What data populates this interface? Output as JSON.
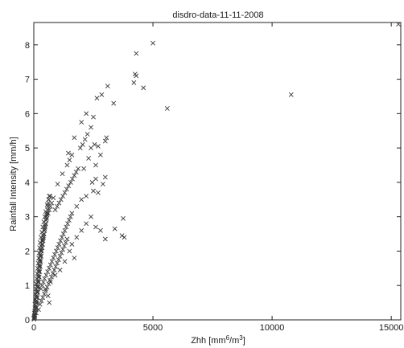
{
  "chart_data": {
    "type": "scatter",
    "title": "disdro-data-11-11-2008",
    "xlabel": {
      "base": "Zhh [mm",
      "sup1": "6",
      "mid": "/m",
      "sup2": "3",
      "end": "]"
    },
    "ylabel": "Rainfall Intensity [mm/h]",
    "xlim": [
      0,
      15400
    ],
    "ylim": [
      0,
      8.65
    ],
    "xticks": [
      0,
      5000,
      10000,
      15000
    ],
    "yticks": [
      0,
      1,
      2,
      3,
      4,
      5,
      6,
      7,
      8
    ],
    "grid": false,
    "marker": "x",
    "marker_color": "#3a3a3a",
    "points": [
      [
        15,
        0.05
      ],
      [
        25,
        0.08
      ],
      [
        30,
        0.12
      ],
      [
        40,
        0.1
      ],
      [
        50,
        0.15
      ],
      [
        20,
        0.2
      ],
      [
        35,
        0.25
      ],
      [
        55,
        0.3
      ],
      [
        60,
        0.22
      ],
      [
        70,
        0.35
      ],
      [
        80,
        0.4
      ],
      [
        45,
        0.45
      ],
      [
        90,
        0.5
      ],
      [
        100,
        0.55
      ],
      [
        65,
        0.6
      ],
      [
        110,
        0.65
      ],
      [
        120,
        0.7
      ],
      [
        75,
        0.75
      ],
      [
        130,
        0.8
      ],
      [
        140,
        0.85
      ],
      [
        95,
        0.9
      ],
      [
        150,
        0.95
      ],
      [
        160,
        1.0
      ],
      [
        105,
        1.05
      ],
      [
        170,
        1.1
      ],
      [
        180,
        1.15
      ],
      [
        125,
        1.2
      ],
      [
        190,
        1.25
      ],
      [
        200,
        1.3
      ],
      [
        145,
        1.35
      ],
      [
        210,
        1.4
      ],
      [
        220,
        1.45
      ],
      [
        165,
        1.5
      ],
      [
        230,
        1.55
      ],
      [
        240,
        1.6
      ],
      [
        185,
        1.65
      ],
      [
        250,
        1.7
      ],
      [
        260,
        1.75
      ],
      [
        205,
        1.8
      ],
      [
        270,
        1.85
      ],
      [
        280,
        1.9
      ],
      [
        225,
        1.95
      ],
      [
        290,
        2.0
      ],
      [
        300,
        2.05
      ],
      [
        245,
        2.1
      ],
      [
        320,
        2.15
      ],
      [
        340,
        2.2
      ],
      [
        265,
        2.25
      ],
      [
        360,
        2.3
      ],
      [
        380,
        2.35
      ],
      [
        300,
        2.4
      ],
      [
        400,
        2.45
      ],
      [
        420,
        2.5
      ],
      [
        340,
        2.55
      ],
      [
        440,
        2.6
      ],
      [
        460,
        2.65
      ],
      [
        380,
        2.7
      ],
      [
        480,
        2.75
      ],
      [
        500,
        2.8
      ],
      [
        420,
        2.85
      ],
      [
        520,
        2.9
      ],
      [
        540,
        2.95
      ],
      [
        460,
        3.0
      ],
      [
        560,
        3.05
      ],
      [
        600,
        3.1
      ],
      [
        500,
        3.15
      ],
      [
        650,
        3.2
      ],
      [
        700,
        3.3
      ],
      [
        560,
        3.35
      ],
      [
        750,
        3.4
      ],
      [
        620,
        3.5
      ],
      [
        820,
        3.55
      ],
      [
        680,
        3.6
      ],
      [
        200,
        0.3
      ],
      [
        260,
        0.45
      ],
      [
        320,
        0.55
      ],
      [
        380,
        0.65
      ],
      [
        440,
        0.75
      ],
      [
        500,
        0.85
      ],
      [
        560,
        0.95
      ],
      [
        620,
        1.05
      ],
      [
        680,
        1.15
      ],
      [
        740,
        1.25
      ],
      [
        800,
        1.35
      ],
      [
        860,
        1.45
      ],
      [
        920,
        1.55
      ],
      [
        980,
        1.65
      ],
      [
        1040,
        1.75
      ],
      [
        1100,
        1.85
      ],
      [
        1160,
        1.95
      ],
      [
        1220,
        2.05
      ],
      [
        1280,
        2.15
      ],
      [
        1340,
        2.25
      ],
      [
        1400,
        2.35
      ],
      [
        300,
        0.9
      ],
      [
        350,
        1.0
      ],
      [
        400,
        1.1
      ],
      [
        450,
        1.2
      ],
      [
        520,
        1.3
      ],
      [
        580,
        1.4
      ],
      [
        640,
        1.5
      ],
      [
        700,
        1.6
      ],
      [
        760,
        1.7
      ],
      [
        820,
        1.8
      ],
      [
        880,
        1.9
      ],
      [
        940,
        2.0
      ],
      [
        1000,
        2.1
      ],
      [
        1060,
        2.2
      ],
      [
        1120,
        2.3
      ],
      [
        1180,
        2.4
      ],
      [
        1240,
        2.5
      ],
      [
        1300,
        2.6
      ],
      [
        1360,
        2.7
      ],
      [
        1420,
        2.8
      ],
      [
        1480,
        2.9
      ],
      [
        1540,
        3.0
      ],
      [
        1600,
        3.1
      ],
      [
        900,
        3.2
      ],
      [
        980,
        3.3
      ],
      [
        1060,
        3.4
      ],
      [
        1140,
        3.5
      ],
      [
        1220,
        3.6
      ],
      [
        1300,
        3.7
      ],
      [
        1380,
        3.8
      ],
      [
        1460,
        3.9
      ],
      [
        1000,
        3.95
      ],
      [
        1550,
        4.0
      ],
      [
        1620,
        4.1
      ],
      [
        1700,
        4.2
      ],
      [
        1780,
        4.3
      ],
      [
        1860,
        4.4
      ],
      [
        1200,
        4.25
      ],
      [
        1400,
        4.5
      ],
      [
        1500,
        4.65
      ],
      [
        1600,
        4.8
      ],
      [
        1450,
        4.85
      ],
      [
        1950,
        5.0
      ],
      [
        2050,
        5.1
      ],
      [
        2150,
        5.25
      ],
      [
        1700,
        5.3
      ],
      [
        2250,
        5.4
      ],
      [
        2400,
        5.6
      ],
      [
        2000,
        5.75
      ],
      [
        2500,
        5.9
      ],
      [
        2200,
        6.0
      ],
      [
        2650,
        6.45
      ],
      [
        2850,
        6.55
      ],
      [
        3100,
        6.8
      ],
      [
        3350,
        6.3
      ],
      [
        1800,
        3.3
      ],
      [
        2000,
        3.5
      ],
      [
        2200,
        3.6
      ],
      [
        2500,
        3.75
      ],
      [
        2700,
        3.7
      ],
      [
        2900,
        3.95
      ],
      [
        3000,
        4.15
      ],
      [
        2450,
        4.0
      ],
      [
        2600,
        4.5
      ],
      [
        2800,
        4.8
      ],
      [
        3000,
        5.2
      ],
      [
        2400,
        5.0
      ],
      [
        2550,
        5.1
      ],
      [
        3050,
        5.3
      ],
      [
        2600,
        4.1
      ],
      [
        2100,
        4.4
      ],
      [
        2300,
        4.7
      ],
      [
        2700,
        5.05
      ],
      [
        1500,
        2.0
      ],
      [
        1600,
        2.2
      ],
      [
        1800,
        2.4
      ],
      [
        2000,
        2.6
      ],
      [
        2200,
        2.8
      ],
      [
        2400,
        3.0
      ],
      [
        2600,
        2.7
      ],
      [
        2800,
        2.6
      ],
      [
        3000,
        2.35
      ],
      [
        3400,
        2.65
      ],
      [
        3700,
        2.45
      ],
      [
        3750,
        2.95
      ],
      [
        3800,
        2.4
      ],
      [
        1700,
        1.8
      ],
      [
        1300,
        1.7
      ],
      [
        1100,
        1.45
      ],
      [
        900,
        1.3
      ],
      [
        700,
        1.1
      ],
      [
        650,
        0.5
      ],
      [
        600,
        0.7
      ],
      [
        500,
        0.9
      ],
      [
        4300,
        7.75
      ],
      [
        4250,
        7.15
      ],
      [
        4300,
        7.1
      ],
      [
        4200,
        6.9
      ],
      [
        4600,
        6.75
      ],
      [
        5000,
        8.05
      ],
      [
        5600,
        6.15
      ],
      [
        10800,
        6.55
      ],
      [
        15300,
        8.6
      ],
      [
        100,
        0.2
      ],
      [
        110,
        0.35
      ],
      [
        130,
        0.5
      ],
      [
        150,
        0.65
      ],
      [
        170,
        0.8
      ],
      [
        190,
        0.95
      ],
      [
        210,
        1.1
      ],
      [
        230,
        1.25
      ],
      [
        250,
        1.4
      ],
      [
        270,
        1.55
      ],
      [
        290,
        1.7
      ],
      [
        310,
        1.85
      ],
      [
        330,
        2.0
      ],
      [
        350,
        2.1
      ],
      [
        370,
        2.2
      ],
      [
        390,
        2.3
      ],
      [
        410,
        2.4
      ],
      [
        430,
        2.5
      ],
      [
        450,
        2.6
      ],
      [
        470,
        2.7
      ],
      [
        490,
        2.8
      ],
      [
        510,
        2.9
      ],
      [
        530,
        3.0
      ],
      [
        550,
        3.1
      ],
      [
        570,
        3.2
      ],
      [
        590,
        3.3
      ],
      [
        610,
        3.4
      ],
      [
        630,
        3.5
      ],
      [
        650,
        3.6
      ],
      [
        10,
        0.02
      ],
      [
        5,
        0.04
      ],
      [
        8,
        0.06
      ]
    ]
  }
}
